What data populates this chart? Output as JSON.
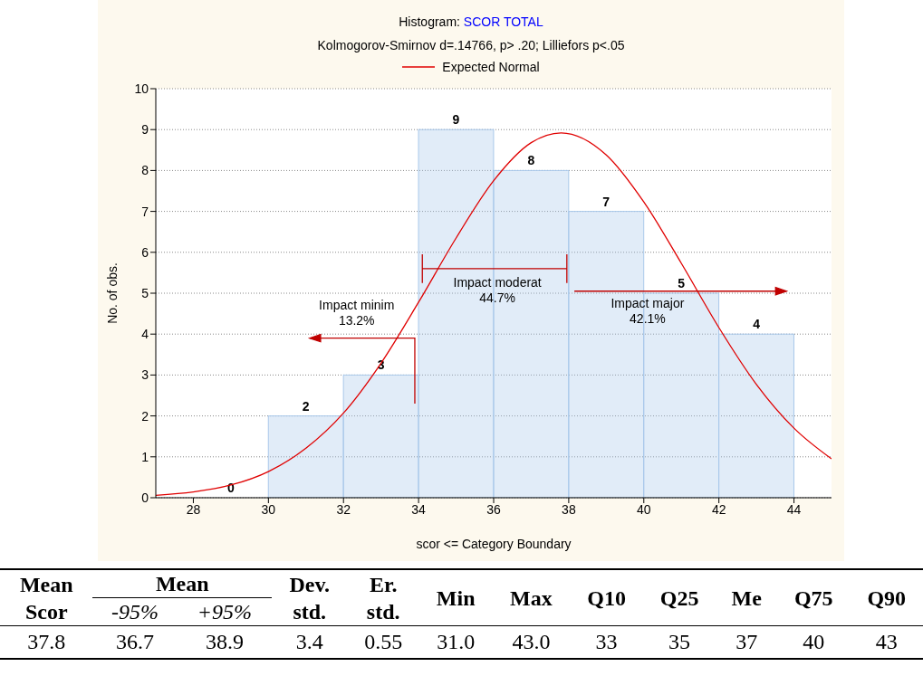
{
  "chart_data": {
    "type": "histogram",
    "title": "Histogram: SCOR TOTAL",
    "subtitle": "Kolmogorov-Smirnov d=.14766, p> .20; Lilliefors p<.05",
    "xlabel": "scor <= Category Boundary",
    "ylabel": "No. of obs.",
    "bins": [
      28,
      30,
      32,
      34,
      36,
      38,
      40,
      42,
      44
    ],
    "values": [
      0,
      2,
      3,
      9,
      8,
      7,
      5,
      4
    ],
    "color": "#a9c8ea",
    "value_labels": [
      "0",
      "2",
      "3",
      "9",
      "8",
      "7",
      "5",
      "4"
    ],
    "series": [
      {
        "name": "Expected Normal",
        "type": "line",
        "color": "#e00000",
        "x": [
          27,
          28,
          29,
          30,
          31,
          32,
          33,
          34,
          35,
          36,
          37,
          37.8,
          39,
          40,
          41,
          42,
          43,
          44,
          45
        ],
        "values": [
          0.06,
          0.14,
          0.31,
          0.64,
          1.21,
          2.07,
          3.29,
          4.78,
          6.35,
          7.75,
          8.68,
          8.92,
          8.38,
          7.23,
          5.73,
          4.16,
          2.77,
          1.7,
          0.95
        ]
      }
    ],
    "xlim": [
      27,
      45
    ],
    "xticks": [
      28,
      30,
      32,
      34,
      36,
      38,
      40,
      42,
      44
    ],
    "ylim": [
      0,
      10
    ],
    "yticks": [
      0,
      1,
      2,
      3,
      4,
      5,
      6,
      7,
      8,
      9,
      10
    ],
    "grid": "y",
    "legend": "top",
    "marker": "none",
    "line_style": "solid",
    "annotations": [
      "Impact minim\n13.2%",
      "Impact moderat\n44.7%",
      "Impact major\n42.1%",
      "Mean\nScor",
      "Mean",
      "-95%",
      "+95%",
      "Dev.\nstd.",
      "Er.\nstd.",
      "Min",
      "Max",
      "Q10",
      "Q25",
      "Me",
      "Q75",
      "Q90",
      "37.8",
      "36.7",
      "38.9",
      "3.4",
      "0.55",
      "31.0",
      "43.0",
      "33",
      "35",
      "37",
      "40",
      "43"
    ]
  }
}
